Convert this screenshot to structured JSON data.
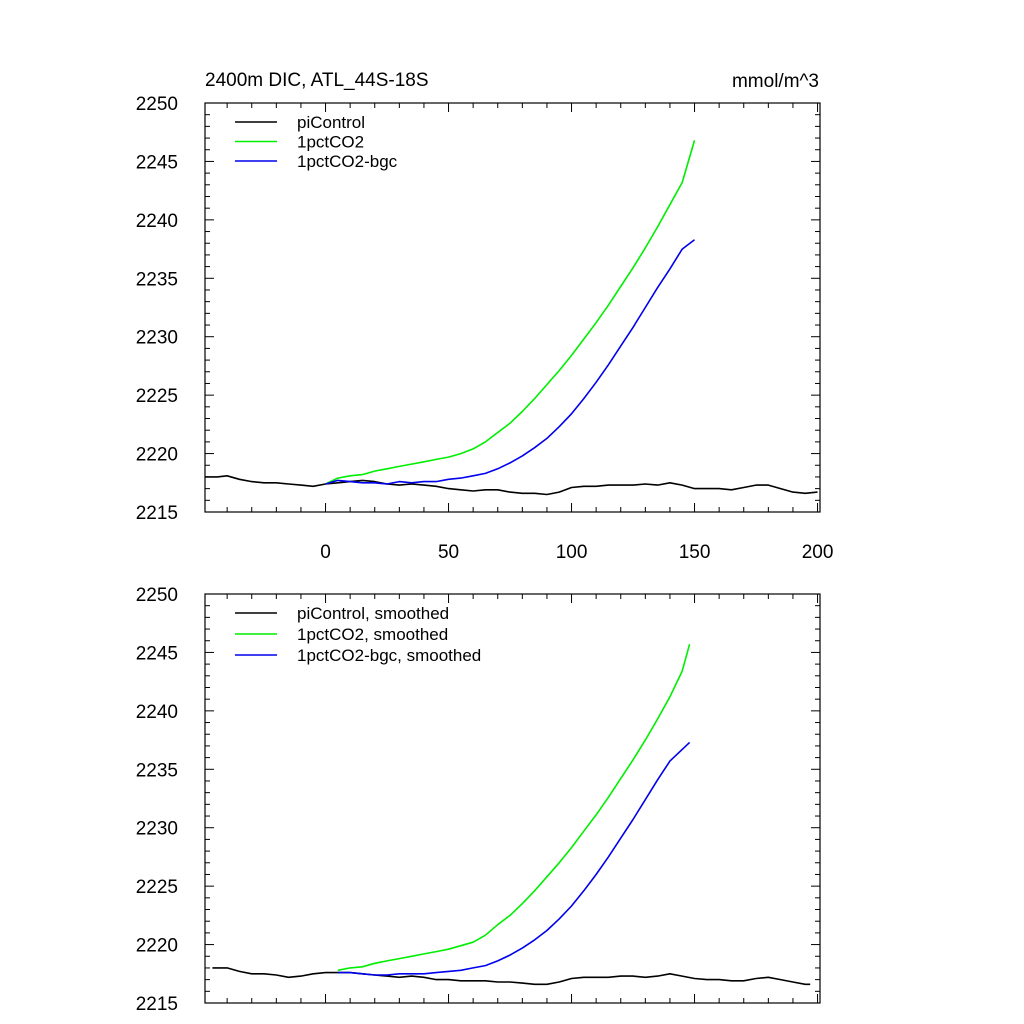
{
  "colors": {
    "piControl": "#000000",
    "1pctCO2": "#00ee00",
    "1pctCO2-bgc": "#0000ee"
  },
  "chart_data": [
    {
      "type": "line",
      "title": "2400m DIC, ATL_44S-18S",
      "units": "mmol/m^3",
      "xlim": [
        -49,
        201
      ],
      "ylim": [
        2215,
        2250
      ],
      "xticks": [
        0,
        50,
        100,
        150,
        200
      ],
      "xtick_labels": [
        "0",
        "50",
        "100",
        "150",
        "200"
      ],
      "yticks": [
        2215,
        2220,
        2225,
        2230,
        2235,
        2240,
        2245,
        2250
      ],
      "ytick_labels": [
        "2215",
        "2220",
        "2225",
        "2230",
        "2235",
        "2240",
        "2245",
        "2250"
      ],
      "series": [
        {
          "name": "piControl",
          "color": "#000000",
          "x": [
            -49,
            -44,
            -40,
            -35,
            -30,
            -25,
            -20,
            -15,
            -10,
            -5,
            0,
            5,
            10,
            15,
            20,
            25,
            30,
            35,
            40,
            45,
            50,
            55,
            60,
            65,
            70,
            75,
            80,
            85,
            90,
            95,
            100,
            105,
            110,
            115,
            120,
            125,
            130,
            135,
            140,
            145,
            150,
            155,
            160,
            165,
            170,
            175,
            180,
            185,
            190,
            195,
            200
          ],
          "values": [
            2218.0,
            2218.0,
            2218.1,
            2217.8,
            2217.6,
            2217.5,
            2217.5,
            2217.4,
            2217.3,
            2217.2,
            2217.4,
            2217.5,
            2217.6,
            2217.7,
            2217.6,
            2217.4,
            2217.3,
            2217.4,
            2217.3,
            2217.2,
            2217.0,
            2216.9,
            2216.8,
            2216.9,
            2216.9,
            2216.7,
            2216.6,
            2216.6,
            2216.5,
            2216.7,
            2217.1,
            2217.2,
            2217.2,
            2217.3,
            2217.3,
            2217.3,
            2217.4,
            2217.3,
            2217.5,
            2217.3,
            2217.0,
            2217.0,
            2217.0,
            2216.9,
            2217.1,
            2217.3,
            2217.3,
            2217.0,
            2216.7,
            2216.6,
            2216.7
          ]
        },
        {
          "name": "1pctCO2",
          "color": "#00ee00",
          "x": [
            0,
            5,
            10,
            15,
            20,
            25,
            30,
            35,
            40,
            45,
            50,
            55,
            60,
            65,
            70,
            75,
            80,
            85,
            90,
            95,
            100,
            105,
            110,
            115,
            120,
            125,
            130,
            135,
            140,
            145,
            150
          ],
          "values": [
            2217.4,
            2217.9,
            2218.1,
            2218.2,
            2218.5,
            2218.7,
            2218.9,
            2219.1,
            2219.3,
            2219.5,
            2219.7,
            2220.0,
            2220.4,
            2221.0,
            2221.8,
            2222.6,
            2223.6,
            2224.7,
            2225.9,
            2227.1,
            2228.4,
            2229.8,
            2231.2,
            2232.7,
            2234.3,
            2235.9,
            2237.6,
            2239.4,
            2241.3,
            2243.2,
            2246.8
          ]
        },
        {
          "name": "1pctCO2-bgc",
          "color": "#0000ee",
          "x": [
            0,
            5,
            10,
            15,
            20,
            25,
            30,
            35,
            40,
            45,
            50,
            55,
            60,
            65,
            70,
            75,
            80,
            85,
            90,
            95,
            100,
            105,
            110,
            115,
            120,
            125,
            130,
            135,
            140,
            145,
            150
          ],
          "values": [
            2217.4,
            2217.7,
            2217.6,
            2217.5,
            2217.5,
            2217.4,
            2217.6,
            2217.5,
            2217.6,
            2217.6,
            2217.8,
            2217.9,
            2218.1,
            2218.3,
            2218.7,
            2219.2,
            2219.8,
            2220.5,
            2221.3,
            2222.3,
            2223.4,
            2224.7,
            2226.1,
            2227.6,
            2229.2,
            2230.8,
            2232.5,
            2234.2,
            2235.8,
            2237.5,
            2238.3
          ]
        }
      ]
    },
    {
      "type": "line",
      "title": "",
      "units": "",
      "xlim": [
        -49,
        201
      ],
      "ylim": [
        2215,
        2250
      ],
      "xticks": [
        0,
        50,
        100,
        150,
        200
      ],
      "xtick_labels": [],
      "yticks": [
        2215,
        2220,
        2225,
        2230,
        2235,
        2240,
        2245,
        2250
      ],
      "ytick_labels": [
        "2215",
        "2220",
        "2225",
        "2230",
        "2235",
        "2240",
        "2245",
        "2250"
      ],
      "series": [
        {
          "name": "piControl, smoothed",
          "color": "#000000",
          "x": [
            -46,
            -40,
            -35,
            -30,
            -25,
            -20,
            -15,
            -10,
            -5,
            0,
            5,
            10,
            15,
            20,
            25,
            30,
            35,
            40,
            45,
            50,
            55,
            60,
            65,
            70,
            75,
            80,
            85,
            90,
            95,
            100,
            105,
            110,
            115,
            120,
            125,
            130,
            135,
            140,
            145,
            150,
            155,
            160,
            165,
            170,
            175,
            180,
            185,
            190,
            195,
            197
          ],
          "values": [
            2218.0,
            2218.0,
            2217.7,
            2217.5,
            2217.5,
            2217.4,
            2217.2,
            2217.3,
            2217.5,
            2217.6,
            2217.6,
            2217.6,
            2217.5,
            2217.4,
            2217.3,
            2217.2,
            2217.3,
            2217.2,
            2217.0,
            2217.0,
            2216.9,
            2216.9,
            2216.9,
            2216.8,
            2216.8,
            2216.7,
            2216.6,
            2216.6,
            2216.8,
            2217.1,
            2217.2,
            2217.2,
            2217.2,
            2217.3,
            2217.3,
            2217.2,
            2217.3,
            2217.5,
            2217.3,
            2217.1,
            2217.0,
            2217.0,
            2216.9,
            2216.9,
            2217.1,
            2217.2,
            2217.0,
            2216.8,
            2216.6,
            2216.6
          ]
        },
        {
          "name": "1pctCO2, smoothed",
          "color": "#00ee00",
          "x": [
            5,
            10,
            15,
            20,
            25,
            30,
            35,
            40,
            45,
            50,
            55,
            60,
            65,
            70,
            75,
            80,
            85,
            90,
            95,
            100,
            105,
            110,
            115,
            120,
            125,
            130,
            135,
            140,
            145,
            148
          ],
          "values": [
            2217.8,
            2218.0,
            2218.1,
            2218.4,
            2218.6,
            2218.8,
            2219.0,
            2219.2,
            2219.4,
            2219.6,
            2219.9,
            2220.2,
            2220.8,
            2221.7,
            2222.5,
            2223.5,
            2224.6,
            2225.8,
            2227.0,
            2228.3,
            2229.7,
            2231.1,
            2232.6,
            2234.2,
            2235.8,
            2237.5,
            2239.3,
            2241.2,
            2243.4,
            2245.7
          ]
        },
        {
          "name": "1pctCO2-bgc, smoothed",
          "color": "#0000ee",
          "x": [
            5,
            10,
            15,
            20,
            25,
            30,
            35,
            40,
            45,
            50,
            55,
            60,
            65,
            70,
            75,
            80,
            85,
            90,
            95,
            100,
            105,
            110,
            115,
            120,
            125,
            130,
            135,
            140,
            145,
            148
          ],
          "values": [
            2217.6,
            2217.6,
            2217.5,
            2217.4,
            2217.4,
            2217.5,
            2217.5,
            2217.5,
            2217.6,
            2217.7,
            2217.8,
            2218.0,
            2218.2,
            2218.6,
            2219.1,
            2219.7,
            2220.4,
            2221.2,
            2222.2,
            2223.3,
            2224.6,
            2226.0,
            2227.5,
            2229.1,
            2230.7,
            2232.4,
            2234.1,
            2235.7,
            2236.7,
            2237.3
          ]
        }
      ]
    }
  ]
}
